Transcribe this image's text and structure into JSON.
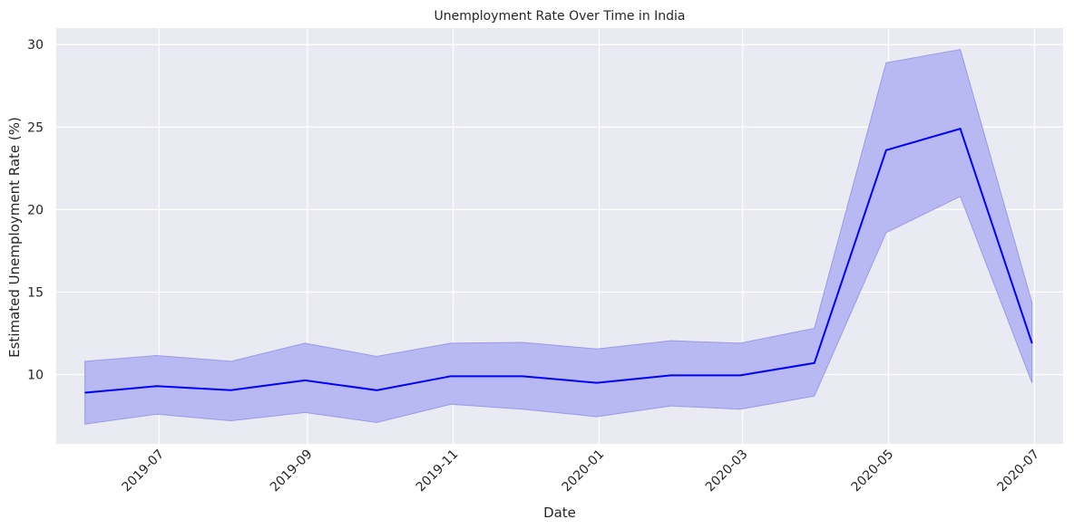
{
  "chart_data": {
    "type": "line",
    "title": "Unemployment Rate Over Time in India",
    "xlabel": "Date",
    "ylabel": "Estimated Unemployment Rate (%)",
    "x_ticks": [
      "2019-07",
      "2019-09",
      "2019-11",
      "2020-01",
      "2020-03",
      "2020-05",
      "2020-07"
    ],
    "y_ticks": [
      10,
      15,
      20,
      25,
      30
    ],
    "ylim": [
      5.8,
      31
    ],
    "xlim": [
      "2019-05-19",
      "2020-07-13"
    ],
    "grid": true,
    "line_color": "#0000ff",
    "band_color": "#b8b8f3",
    "background_color": "#eaeaf2",
    "series": [
      {
        "x": [
          "2019-05-31",
          "2019-06-30",
          "2019-07-31",
          "2019-08-31",
          "2019-09-30",
          "2019-10-31",
          "2019-11-30",
          "2019-12-31",
          "2020-01-31",
          "2020-02-29",
          "2020-03-31",
          "2020-04-30",
          "2020-05-31",
          "2020-06-30"
        ],
        "y": [
          8.9,
          9.3,
          9.05,
          9.65,
          9.05,
          9.9,
          9.9,
          9.5,
          9.95,
          9.95,
          10.7,
          23.6,
          24.9,
          11.9
        ],
        "lower": [
          7.0,
          7.6,
          7.2,
          7.7,
          7.1,
          8.2,
          7.9,
          7.45,
          8.1,
          7.9,
          8.7,
          18.6,
          20.8,
          9.5
        ],
        "upper": [
          10.8,
          11.15,
          10.8,
          11.9,
          11.1,
          11.9,
          11.95,
          11.55,
          12.05,
          11.9,
          12.8,
          28.9,
          29.7,
          14.35
        ]
      }
    ]
  }
}
